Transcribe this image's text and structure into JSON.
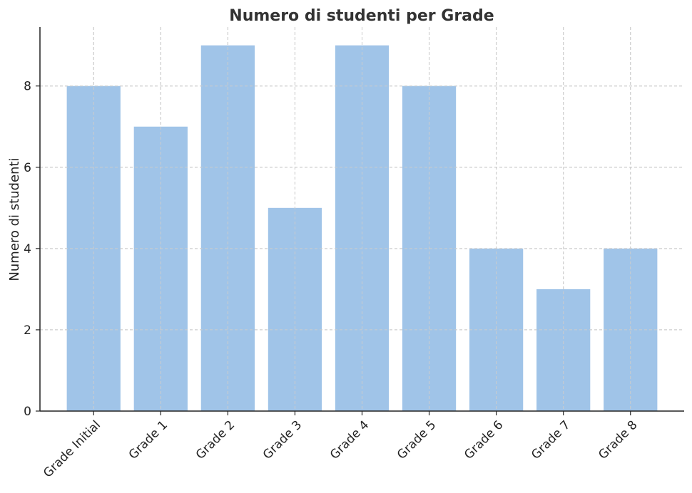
{
  "chart_data": {
    "type": "bar",
    "title": "Numero di studenti per Grade",
    "xlabel": "",
    "ylabel": "Numero di studenti",
    "categories": [
      "Grade Initial",
      "Grade 1",
      "Grade 2",
      "Grade 3",
      "Grade 4",
      "Grade 5",
      "Grade 6",
      "Grade 7",
      "Grade 8"
    ],
    "values": [
      8,
      7,
      9,
      5,
      9,
      8,
      4,
      3,
      4
    ],
    "ylim": [
      0,
      9.45
    ],
    "yticks": [
      0,
      2,
      4,
      6,
      8
    ],
    "grid": true,
    "bar_color": "#a0c4e8"
  }
}
